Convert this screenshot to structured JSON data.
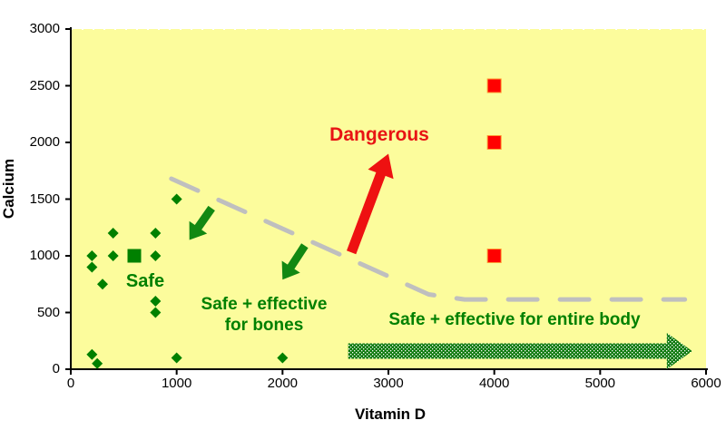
{
  "chart_data": {
    "type": "scatter",
    "title": "",
    "xlabel": "Vitamin D",
    "ylabel": "Calcium",
    "xlim": [
      0,
      6000
    ],
    "ylim": [
      0,
      3000
    ],
    "grid": false,
    "plot_bg_color": "#FCFC9C",
    "axis_color": "#000000",
    "x_ticks": [
      0,
      1000,
      2000,
      3000,
      4000,
      5000,
      6000
    ],
    "x_tick_labels": [
      "0",
      "1000",
      "2000",
      "3000",
      "4000",
      "5000",
      "6000"
    ],
    "y_ticks": [
      0,
      500,
      1000,
      1500,
      2000,
      2500,
      3000
    ],
    "y_tick_labels": [
      "0",
      "500",
      "1000",
      "1500",
      "2000",
      "2500",
      "3000"
    ],
    "series": [
      {
        "name": "safe-intakes",
        "marker": "diamond",
        "color": "#008000",
        "size": 12,
        "points": [
          [
            200,
            1000
          ],
          [
            400,
            1000
          ],
          [
            800,
            1000
          ],
          [
            400,
            1200
          ],
          [
            800,
            1200
          ],
          [
            200,
            900
          ],
          [
            300,
            750
          ],
          [
            1000,
            1500
          ],
          [
            800,
            600
          ],
          [
            800,
            500
          ],
          [
            200,
            130
          ],
          [
            250,
            50
          ],
          [
            1000,
            100
          ],
          [
            2000,
            100
          ]
        ]
      },
      {
        "name": "safe-reference",
        "marker": "square",
        "color": "#008000",
        "size": 15,
        "points": [
          [
            600,
            1000
          ]
        ]
      },
      {
        "name": "dangerous-intakes",
        "marker": "square",
        "color": "#FF0000",
        "border_color": "#FF9933",
        "size": 15,
        "points": [
          [
            4000,
            1000
          ],
          [
            4000,
            2000
          ],
          [
            4000,
            2500
          ]
        ]
      }
    ],
    "boundary_line": {
      "color": "#BFBFBF",
      "style": "dashed",
      "width": 5,
      "points": [
        [
          950,
          1680
        ],
        [
          3380,
          660
        ],
        [
          3720,
          615
        ],
        [
          5800,
          615
        ]
      ]
    },
    "arrows": [
      {
        "name": "arrow-safe-bones-1",
        "color": "#128812",
        "from": [
          1330,
          1420
        ],
        "to": [
          1120,
          1140
        ],
        "shaft_width": 9,
        "head_width": 24,
        "head_length": 17
      },
      {
        "name": "arrow-safe-bones-2",
        "color": "#128812",
        "from": [
          2210,
          1090
        ],
        "to": [
          2000,
          790
        ],
        "shaft_width": 9,
        "head_width": 24,
        "head_length": 17
      },
      {
        "name": "arrow-dangerous",
        "color": "#EE1111",
        "from": [
          2650,
          1030
        ],
        "to": [
          3000,
          1900
        ],
        "shaft_width": 11,
        "head_width": 30,
        "head_length": 24
      },
      {
        "name": "arrow-entire-body",
        "color": "#0E7A0E",
        "from": [
          2620,
          160
        ],
        "to": [
          5870,
          160
        ],
        "shaft_width": 17,
        "head_width": 40,
        "head_length": 28,
        "pattern": "white-dots"
      }
    ],
    "annotations": {
      "safe": {
        "text": "Safe",
        "color": "#008000"
      },
      "safe_bones_line1": {
        "text": "Safe + effective",
        "color": "#008000"
      },
      "safe_bones_line2": {
        "text": "for bones",
        "color": "#008000"
      },
      "dangerous": {
        "text": "Dangerous",
        "color": "#E81414"
      },
      "safe_entire_body": {
        "text": "Safe + effective for entire body",
        "color": "#008000"
      }
    }
  }
}
